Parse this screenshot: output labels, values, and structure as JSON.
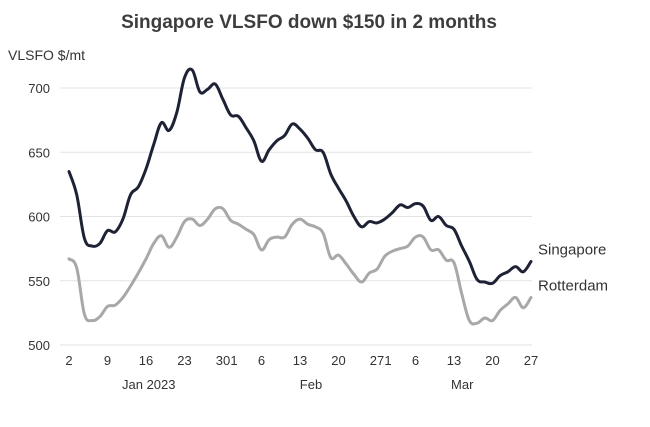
{
  "chart_data": {
    "type": "line",
    "title": "Singapore VLSFO down $150 in 2 months",
    "ylabel": "VLSFO $/mt",
    "ylim": [
      500,
      720
    ],
    "yticks": [
      500,
      550,
      600,
      650,
      700
    ],
    "x_tick_labels": [
      {
        "x": 0,
        "label": "2"
      },
      {
        "x": 7,
        "label": "9"
      },
      {
        "x": 14,
        "label": "16"
      },
      {
        "x": 21,
        "label": "23"
      },
      {
        "x": 28,
        "label": "30"
      },
      {
        "x": 30,
        "label": "1"
      },
      {
        "x": 35,
        "label": "6"
      },
      {
        "x": 42,
        "label": "13"
      },
      {
        "x": 49,
        "label": "20"
      },
      {
        "x": 56,
        "label": "27"
      },
      {
        "x": 58,
        "label": "1"
      },
      {
        "x": 63,
        "label": "6"
      },
      {
        "x": 70,
        "label": "13"
      },
      {
        "x": 77,
        "label": "20"
      },
      {
        "x": 84,
        "label": "27"
      }
    ],
    "month_labels": [
      {
        "x": 14.5,
        "label": "Jan 2023"
      },
      {
        "x": 44,
        "label": "Feb"
      },
      {
        "x": 71.5,
        "label": "Mar"
      }
    ],
    "grid": true,
    "series": [
      {
        "name": "Singapore",
        "color": "#1e2235",
        "points": [
          [
            0,
            635
          ],
          [
            1,
            617
          ],
          [
            2,
            583
          ],
          [
            3,
            577
          ],
          [
            4,
            579
          ],
          [
            5,
            589
          ],
          [
            6,
            588
          ],
          [
            7,
            598
          ],
          [
            8,
            617
          ],
          [
            9,
            623
          ],
          [
            10,
            637
          ],
          [
            11,
            656
          ],
          [
            12,
            673
          ],
          [
            13,
            667
          ],
          [
            14,
            681
          ],
          [
            15,
            708
          ],
          [
            16,
            714
          ],
          [
            17,
            697
          ],
          [
            18,
            699
          ],
          [
            19,
            703
          ],
          [
            20,
            691
          ],
          [
            21,
            679
          ],
          [
            22,
            678
          ],
          [
            23,
            669
          ],
          [
            24,
            659
          ],
          [
            25,
            643
          ],
          [
            26,
            652
          ],
          [
            27,
            659
          ],
          [
            28,
            663
          ],
          [
            29,
            672
          ],
          [
            30,
            668
          ],
          [
            31,
            661
          ],
          [
            32,
            652
          ],
          [
            33,
            650
          ],
          [
            34,
            633
          ],
          [
            35,
            622
          ],
          [
            36,
            612
          ],
          [
            37,
            600
          ],
          [
            38,
            592
          ],
          [
            39,
            596
          ],
          [
            40,
            595
          ],
          [
            41,
            598
          ],
          [
            42,
            603
          ],
          [
            43,
            609
          ],
          [
            44,
            607
          ],
          [
            45,
            610
          ],
          [
            46,
            608
          ],
          [
            47,
            597
          ],
          [
            48,
            600
          ],
          [
            49,
            593
          ],
          [
            50,
            590
          ],
          [
            51,
            577
          ],
          [
            52,
            565
          ],
          [
            53,
            551
          ],
          [
            54,
            549
          ],
          [
            55,
            548
          ],
          [
            56,
            554
          ],
          [
            57,
            557
          ],
          [
            58,
            561
          ],
          [
            59,
            557
          ],
          [
            60,
            565
          ]
        ]
      },
      {
        "name": "Rotterdam",
        "color": "#a8a8a8",
        "points": [
          [
            0,
            567
          ],
          [
            1,
            560
          ],
          [
            2,
            524
          ],
          [
            3,
            519
          ],
          [
            4,
            522
          ],
          [
            5,
            530
          ],
          [
            6,
            531
          ],
          [
            7,
            537
          ],
          [
            8,
            546
          ],
          [
            9,
            556
          ],
          [
            10,
            567
          ],
          [
            11,
            579
          ],
          [
            12,
            585
          ],
          [
            13,
            576
          ],
          [
            14,
            584
          ],
          [
            15,
            596
          ],
          [
            16,
            598
          ],
          [
            17,
            593
          ],
          [
            18,
            598
          ],
          [
            19,
            606
          ],
          [
            20,
            606
          ],
          [
            21,
            597
          ],
          [
            22,
            594
          ],
          [
            23,
            590
          ],
          [
            24,
            586
          ],
          [
            25,
            574
          ],
          [
            26,
            582
          ],
          [
            27,
            584
          ],
          [
            28,
            584
          ],
          [
            29,
            594
          ],
          [
            30,
            598
          ],
          [
            31,
            594
          ],
          [
            32,
            592
          ],
          [
            33,
            587
          ],
          [
            34,
            568
          ],
          [
            35,
            570
          ],
          [
            36,
            563
          ],
          [
            37,
            555
          ],
          [
            38,
            549
          ],
          [
            39,
            556
          ],
          [
            40,
            559
          ],
          [
            41,
            569
          ],
          [
            42,
            573
          ],
          [
            43,
            575
          ],
          [
            44,
            577
          ],
          [
            45,
            584
          ],
          [
            46,
            584
          ],
          [
            47,
            574
          ],
          [
            48,
            574
          ],
          [
            49,
            566
          ],
          [
            50,
            564
          ],
          [
            51,
            540
          ],
          [
            52,
            519
          ],
          [
            53,
            517
          ],
          [
            54,
            521
          ],
          [
            55,
            519
          ],
          [
            56,
            527
          ],
          [
            57,
            532
          ],
          [
            58,
            537
          ],
          [
            59,
            529
          ],
          [
            60,
            537
          ]
        ]
      }
    ]
  }
}
